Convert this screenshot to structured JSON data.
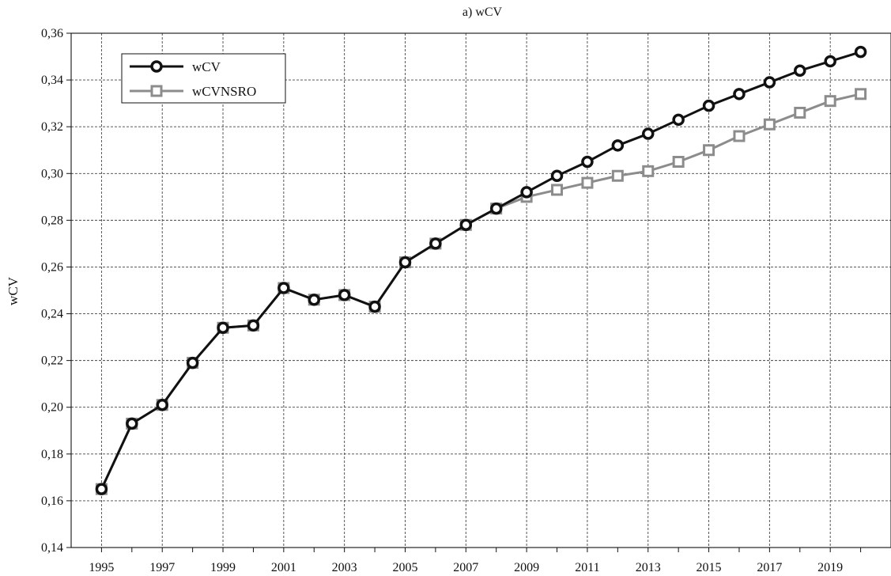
{
  "chart_data": {
    "type": "line",
    "title": "a) wCV",
    "xlabel": "",
    "ylabel": "wCV",
    "xlim": [
      1994,
      2021
    ],
    "ylim": [
      0.14,
      0.36
    ],
    "grid": true,
    "legend_position": "top-left",
    "x_ticks": [
      1995,
      1997,
      1999,
      2001,
      2003,
      2005,
      2007,
      2009,
      2011,
      2013,
      2015,
      2017,
      2019
    ],
    "x_tick_labels": [
      "1995",
      "1997",
      "1999",
      "2001",
      "2003",
      "2005",
      "2007",
      "2009",
      "2011",
      "2013",
      "2015",
      "2017",
      "2019"
    ],
    "x_grid": [
      1995,
      1997,
      1999,
      2001,
      2003,
      2005,
      2007,
      2009,
      2011,
      2013,
      2015,
      2017,
      2019
    ],
    "y_ticks": [
      0.14,
      0.16,
      0.18,
      0.2,
      0.22,
      0.24,
      0.26,
      0.28,
      0.3,
      0.32,
      0.34,
      0.36
    ],
    "y_tick_labels": [
      "0,14",
      "0,16",
      "0,18",
      "0,20",
      "0,22",
      "0,24",
      "0,26",
      "0,28",
      "0,30",
      "0,32",
      "0,34",
      "0,36"
    ],
    "x": [
      1995,
      1996,
      1997,
      1998,
      1999,
      2000,
      2001,
      2002,
      2003,
      2004,
      2005,
      2006,
      2007,
      2008,
      2009,
      2010,
      2011,
      2012,
      2013,
      2014,
      2015,
      2016,
      2017,
      2018,
      2019,
      2020
    ],
    "series": [
      {
        "name": "wCVNSRO",
        "color": "#8c8c8c",
        "marker": "square",
        "values": [
          0.165,
          0.193,
          0.201,
          0.219,
          0.234,
          0.235,
          0.251,
          0.246,
          0.248,
          0.243,
          0.262,
          0.27,
          0.278,
          0.285,
          0.29,
          0.293,
          0.296,
          0.299,
          0.301,
          0.305,
          0.31,
          0.316,
          0.321,
          0.326,
          0.331,
          0.334
        ]
      },
      {
        "name": "wCV",
        "color": "#111111",
        "marker": "circle",
        "values": [
          0.165,
          0.193,
          0.201,
          0.219,
          0.234,
          0.235,
          0.251,
          0.246,
          0.248,
          0.243,
          0.262,
          0.27,
          0.278,
          0.285,
          0.292,
          0.299,
          0.305,
          0.312,
          0.317,
          0.323,
          0.329,
          0.334,
          0.339,
          0.344,
          0.348,
          0.352
        ]
      }
    ],
    "legend": [
      {
        "label": "wCV",
        "color": "#111111",
        "marker": "circle"
      },
      {
        "label": "wCVNSRO",
        "color": "#8c8c8c",
        "marker": "square"
      }
    ]
  }
}
